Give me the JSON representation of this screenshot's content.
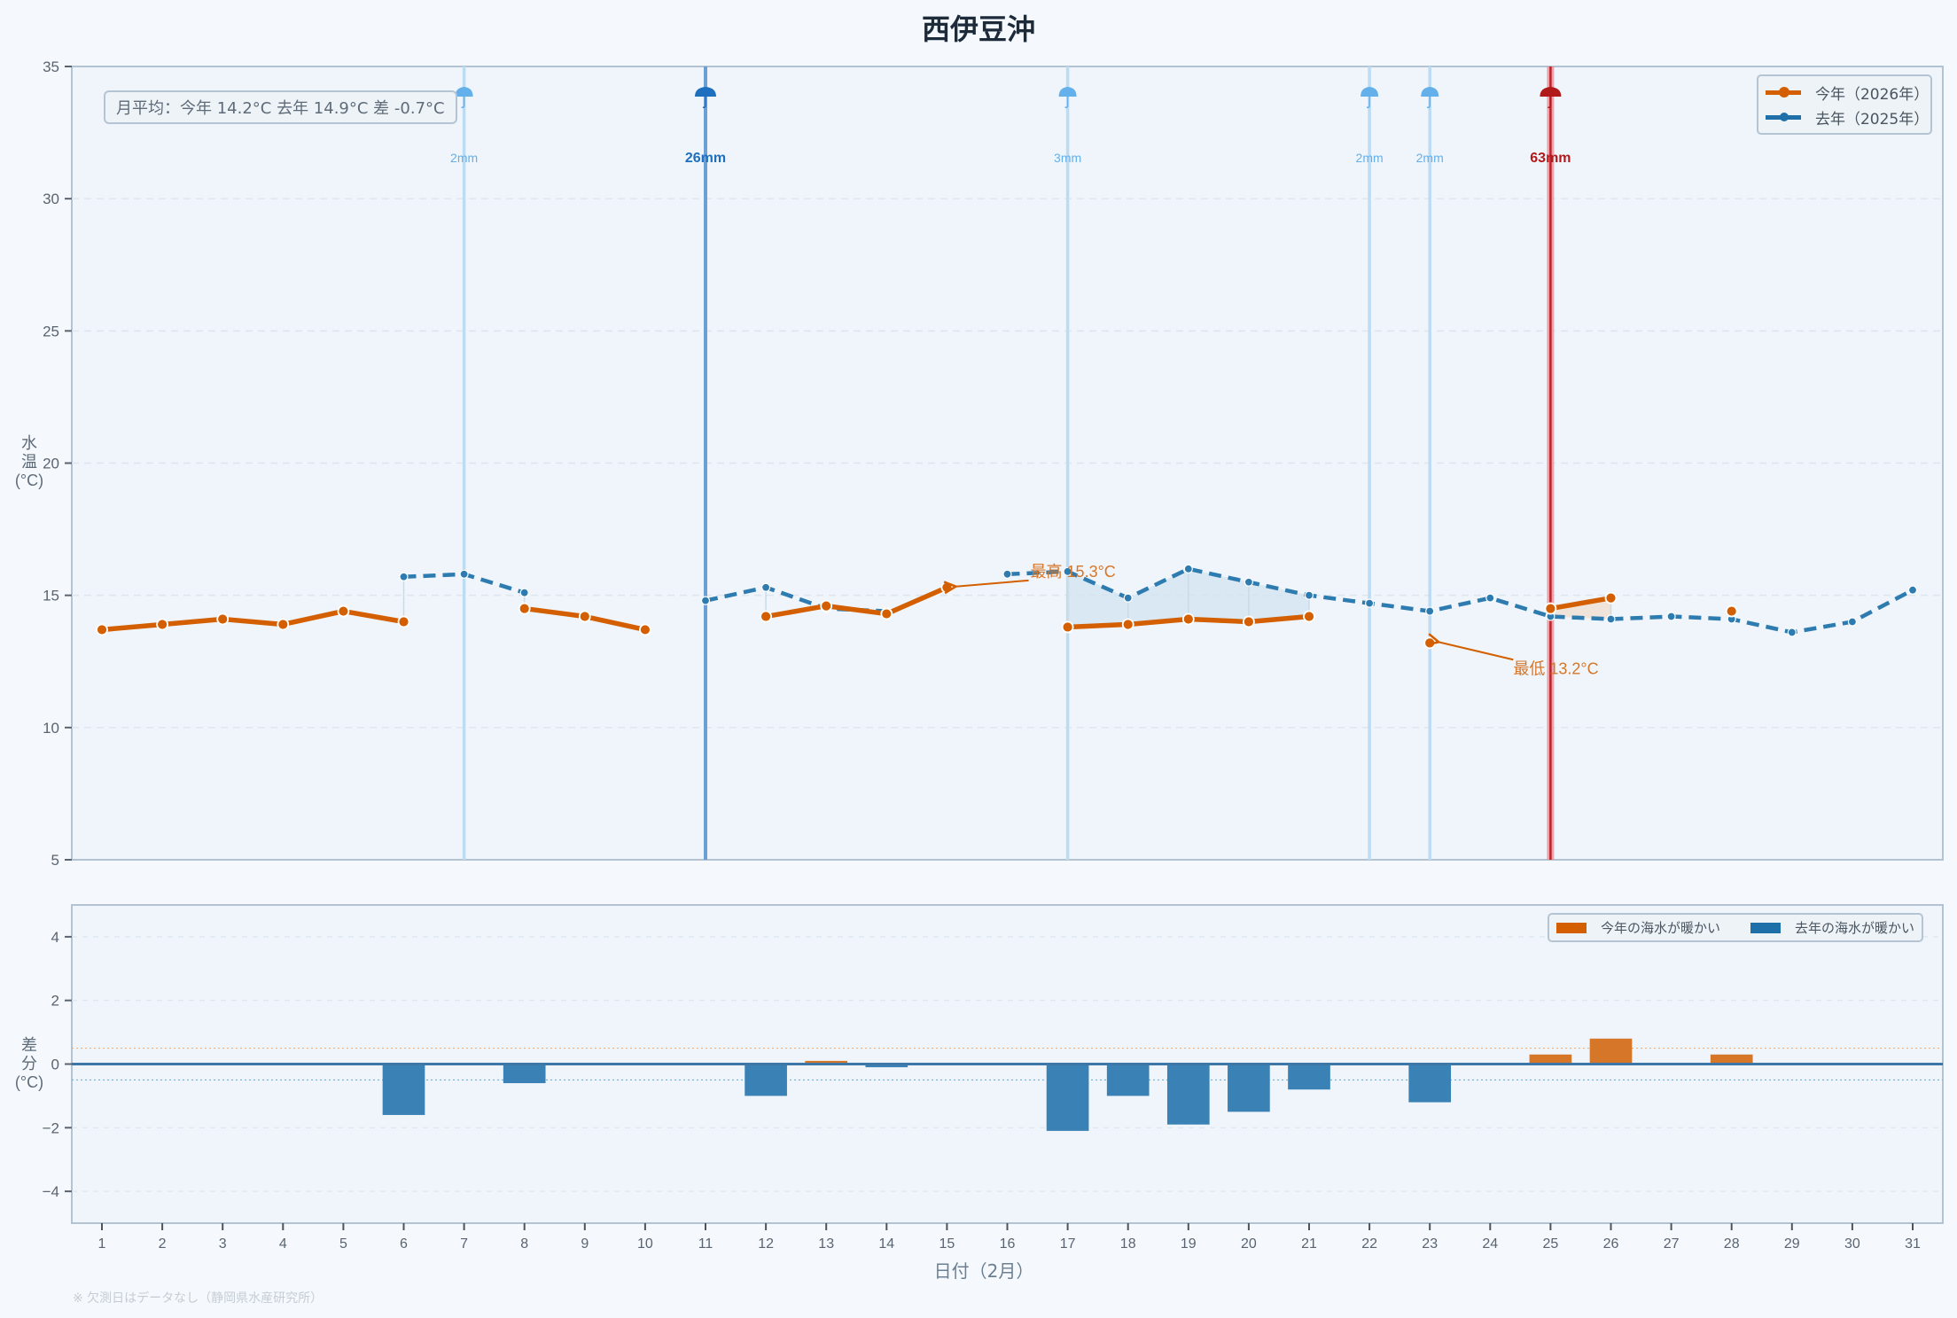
{
  "header": {
    "title": "西伊豆沖"
  },
  "summary": {
    "text": "月平均：今年 14.2°C  去年 14.9°C  差 -0.7°C"
  },
  "legend_top": {
    "items": [
      {
        "label": "今年（2026年）",
        "color": "#d35f00"
      },
      {
        "label": "去年（2025年）",
        "color": "#1f6fa8"
      }
    ]
  },
  "legend_bottom": {
    "items": [
      {
        "label": "今年の海水が暖かい",
        "color": "#d35f00"
      },
      {
        "label": "去年の海水が暖かい",
        "color": "#1f6fa8"
      }
    ]
  },
  "axes": {
    "top_ylabel": "水\n温\n(°C)",
    "bottom_ylabel": "差\n分\n(°C)",
    "xlabel": "日付（2月）"
  },
  "footnote": "※ 欠測日はデータなし（静岡県水産研究所）",
  "colors": {
    "this_year": "#d35f00",
    "last_year": "#2e7bb0",
    "bar_warm": "#d67628",
    "bar_cool": "#3a82b5",
    "rain_light": "#64b0ea",
    "rain_medium": "#1f6fbf",
    "rain_heavy": "#b01a1a",
    "background": "#f5f9fd",
    "plot_bg": "#eff5fb"
  },
  "chart_data": [
    {
      "type": "line",
      "title": "西伊豆沖",
      "xlabel": "日付（2月）",
      "ylabel": "水温 (°C)",
      "ylim": [
        5,
        35
      ],
      "yticks": [
        5,
        10,
        15,
        20,
        25,
        30,
        35
      ],
      "x": [
        1,
        2,
        3,
        4,
        5,
        6,
        7,
        8,
        9,
        10,
        11,
        12,
        13,
        14,
        15,
        16,
        17,
        18,
        19,
        20,
        21,
        22,
        23,
        24,
        25,
        26,
        27,
        28,
        29,
        30,
        31
      ],
      "grid": true,
      "legend_position": "upper right",
      "series": [
        {
          "name": "今年（2026年）",
          "style": "solid",
          "values": [
            13.7,
            13.9,
            14.1,
            13.9,
            14.4,
            14.0,
            null,
            14.5,
            14.2,
            13.7,
            null,
            14.2,
            14.6,
            14.3,
            15.3,
            null,
            13.8,
            13.9,
            14.1,
            14.0,
            14.2,
            null,
            13.2,
            null,
            14.5,
            14.9,
            null,
            14.4,
            null,
            null,
            null
          ]
        },
        {
          "name": "去年（2025年）",
          "style": "dashed",
          "values": [
            null,
            null,
            null,
            null,
            null,
            15.7,
            15.8,
            15.1,
            null,
            null,
            14.8,
            15.3,
            14.5,
            14.4,
            null,
            15.8,
            15.9,
            14.9,
            16.0,
            15.5,
            15.0,
            14.7,
            14.4,
            14.9,
            14.2,
            14.1,
            14.2,
            14.1,
            13.6,
            14.0,
            15.2
          ]
        }
      ],
      "rain": [
        {
          "day": 7,
          "label": "2mm",
          "level": "light"
        },
        {
          "day": 11,
          "label": "26mm",
          "level": "medium"
        },
        {
          "day": 17,
          "label": "3mm",
          "level": "light"
        },
        {
          "day": 22,
          "label": "2mm",
          "level": "light"
        },
        {
          "day": 23,
          "label": "2mm",
          "level": "light"
        },
        {
          "day": 25,
          "label": "63mm",
          "level": "heavy"
        }
      ],
      "annotations": [
        {
          "text": "最高 15.3°C",
          "day": 15,
          "value": 15.3,
          "text_day": 16.5,
          "text_value": 15.9
        },
        {
          "text": "最低 13.2°C",
          "day": 23,
          "value": 13.2,
          "text_day": 24.5,
          "text_value": 12.5
        }
      ]
    },
    {
      "type": "bar",
      "xlabel": "日付（2月）",
      "ylabel": "差分 (°C)",
      "ylim": [
        -5,
        5
      ],
      "yticks": [
        -4,
        -2,
        0,
        2,
        4
      ],
      "thresholds": [
        0.5,
        -0.5
      ],
      "categories": [
        1,
        2,
        3,
        4,
        5,
        6,
        7,
        8,
        9,
        10,
        11,
        12,
        13,
        14,
        15,
        16,
        17,
        18,
        19,
        20,
        21,
        22,
        23,
        24,
        25,
        26,
        27,
        28,
        29,
        30,
        31
      ],
      "values": [
        null,
        null,
        null,
        null,
        null,
        -1.6,
        null,
        -0.6,
        null,
        null,
        null,
        -1.0,
        0.1,
        -0.1,
        null,
        null,
        -2.1,
        -1.0,
        -1.9,
        -1.5,
        -0.8,
        null,
        -1.2,
        null,
        0.3,
        0.8,
        null,
        0.3,
        null,
        null,
        null
      ],
      "legend": [
        "今年の海水が暖かい",
        "去年の海水が暖かい"
      ]
    }
  ]
}
